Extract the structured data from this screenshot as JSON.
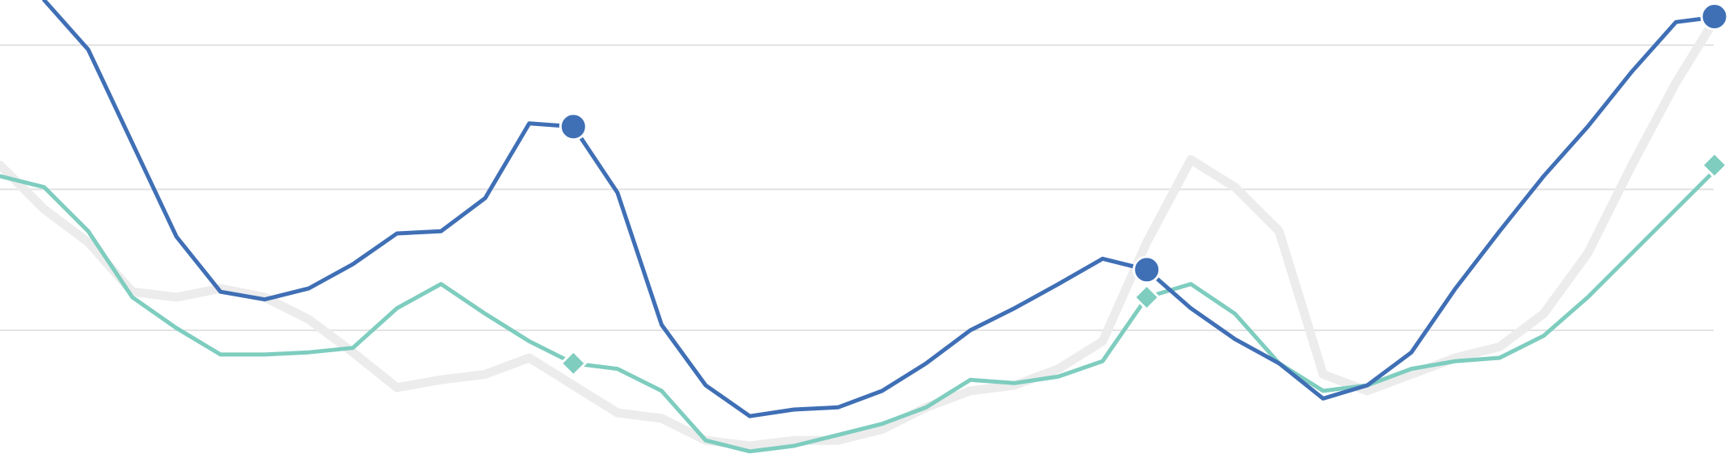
{
  "chart_data": {
    "type": "line",
    "ylim": [
      0,
      416
    ],
    "yticks": [
      116,
      244,
      375
    ],
    "grid": true,
    "series": [
      {
        "color": "#ececec",
        "values": [
          266,
          226,
          196,
          151,
          146,
          154,
          146,
          126,
          96,
          64,
          71,
          76,
          91,
          66,
          41,
          36,
          16,
          11,
          16,
          16,
          26,
          46,
          61,
          66,
          81,
          106,
          196,
          271,
          246,
          206,
          76,
          61,
          76,
          91,
          101,
          131,
          186,
          266,
          341,
          406
        ]
      },
      {
        "color": "#7ecdbf",
        "marker": "diamond",
        "markers": [
          13,
          26,
          39
        ],
        "values": [
          256,
          246,
          206,
          146,
          118,
          94,
          94,
          96,
          100,
          136,
          158,
          131,
          106,
          86,
          81,
          61,
          16,
          6,
          11,
          21,
          31,
          46,
          71,
          68,
          74,
          88,
          146,
          158,
          131,
          86,
          61,
          66,
          81,
          88,
          91,
          111,
          146,
          186,
          226,
          266
        ]
      },
      {
        "color": "#3f6fb5",
        "marker": "circle",
        "markers": [
          13,
          26,
          39
        ],
        "values": [
          null,
          416,
          371,
          286,
          201,
          151,
          144,
          154,
          176,
          204,
          206,
          236,
          304,
          301,
          241,
          121,
          66,
          38,
          44,
          46,
          61,
          86,
          116,
          136,
          158,
          181,
          171,
          136,
          108,
          86,
          54,
          66,
          96,
          154,
          206,
          256,
          301,
          351,
          396,
          401
        ]
      }
    ]
  }
}
